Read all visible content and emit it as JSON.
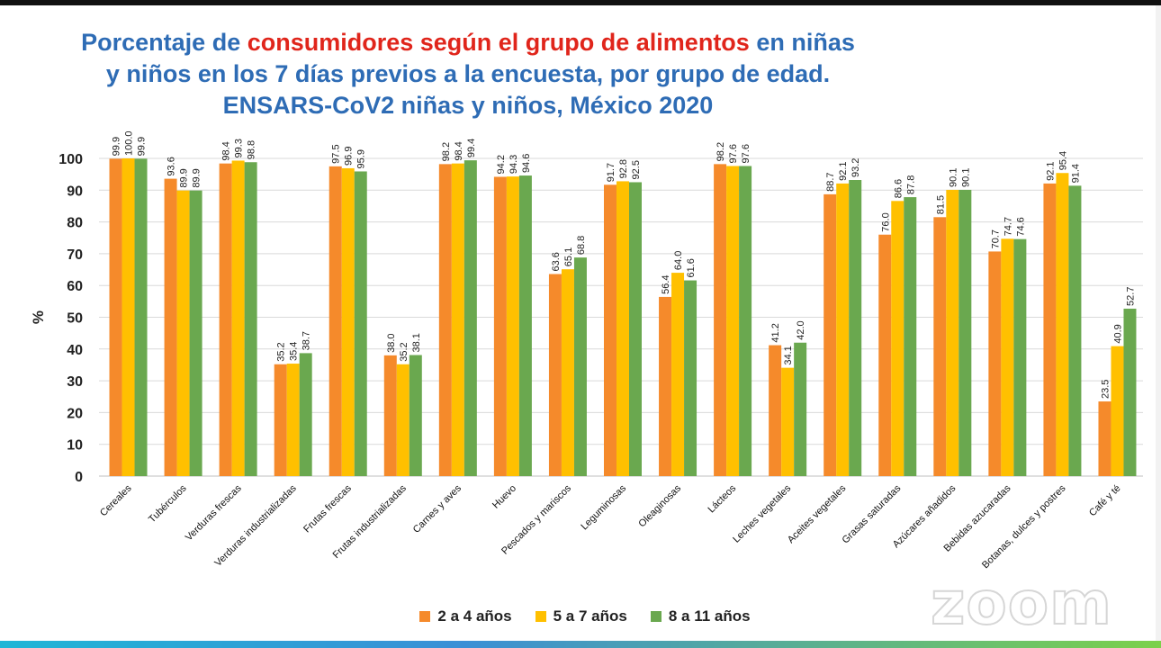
{
  "title": {
    "part1": "Porcentaje de ",
    "part2": "consumidores según el grupo de alimentos",
    "part3": " en niñas",
    "line2": "y niños en los 7 días previos a la encuesta, por grupo de edad.",
    "line3": "ENSARS-CoV2 niñas y niños, México 2020"
  },
  "watermark": "zoom",
  "chart_data": {
    "type": "bar",
    "ylabel": "%",
    "ylim": [
      0,
      100
    ],
    "yticks": [
      0,
      10,
      20,
      30,
      40,
      50,
      60,
      70,
      80,
      90,
      100
    ],
    "grid": true,
    "legend_position": "bottom",
    "categories": [
      "Cereales",
      "Tubérculos",
      "Verduras frescas",
      "Verduras industrializadas",
      "Frutas frescas",
      "Frutas industrializadas",
      "Carnes y aves",
      "Huevo",
      "Pescados y mariscos",
      "Leguminosas",
      "Oleaginosas",
      "Lácteos",
      "Leches vegetales",
      "Aceites vegetales",
      "Grasas saturadas",
      "Azúcares añadidos",
      "Bebidas azucaradas",
      "Botanas, dulces y postres",
      "Café y té"
    ],
    "series": [
      {
        "name": "2 a 4 años",
        "color": "#f58a2b",
        "values": [
          99.9,
          93.6,
          98.4,
          35.2,
          97.5,
          38.0,
          98.2,
          94.2,
          63.6,
          91.7,
          56.4,
          98.2,
          41.2,
          88.7,
          76.0,
          81.5,
          70.7,
          92.1,
          23.5
        ]
      },
      {
        "name": "5 a 7 años",
        "color": "#ffc000",
        "values": [
          100.0,
          89.9,
          99.3,
          35.4,
          96.9,
          35.2,
          98.4,
          94.3,
          65.1,
          92.8,
          64.0,
          97.6,
          34.1,
          92.1,
          86.6,
          90.1,
          74.7,
          95.4,
          40.9
        ]
      },
      {
        "name": "8 a 11 años",
        "color": "#6aa84f",
        "values": [
          99.9,
          89.9,
          98.8,
          38.7,
          95.9,
          38.1,
          99.4,
          94.6,
          68.8,
          92.5,
          61.6,
          97.6,
          42.0,
          93.2,
          87.8,
          90.1,
          74.6,
          91.4,
          52.7
        ]
      }
    ]
  }
}
